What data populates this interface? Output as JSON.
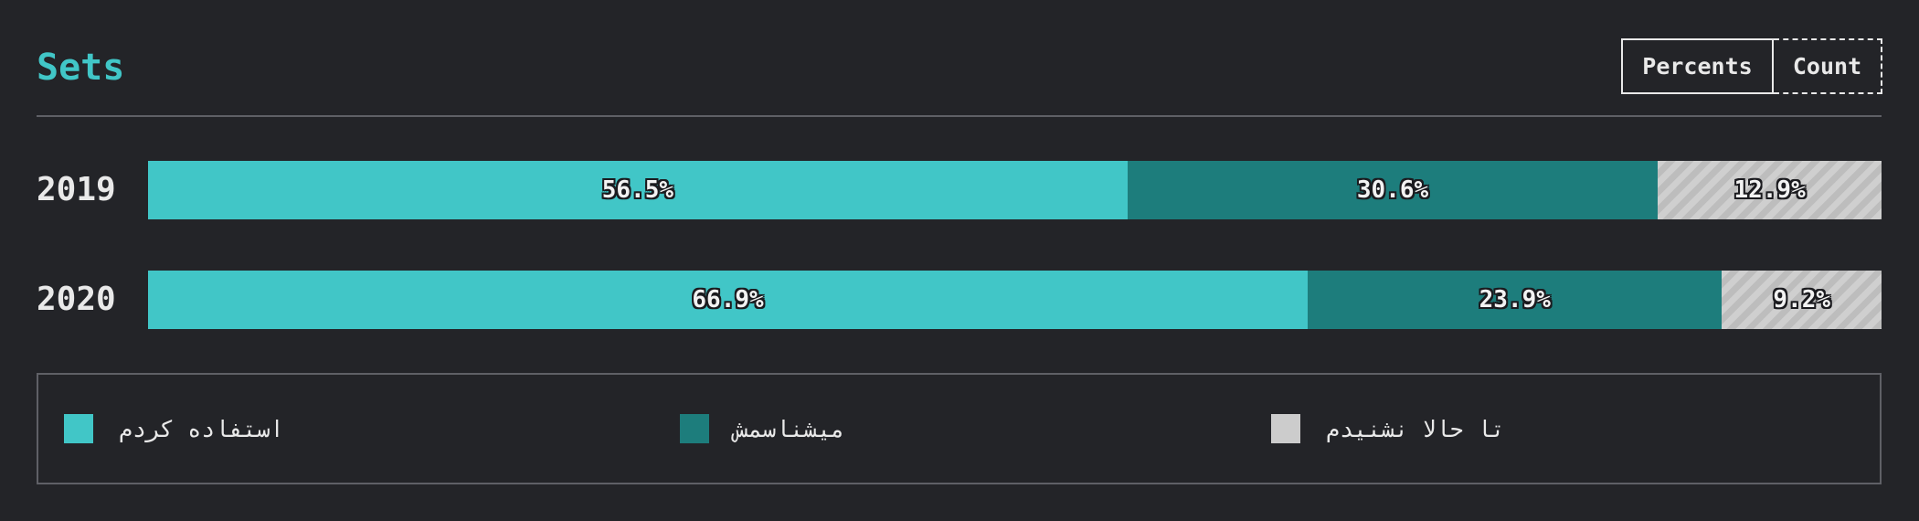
{
  "header": {
    "title": "Sets",
    "toggle": {
      "percents_label": "Percents",
      "count_label": "Count"
    }
  },
  "chart_data": {
    "type": "bar",
    "stacked": true,
    "orientation": "horizontal",
    "normalized": "percent",
    "title": "Sets",
    "categories": [
      "2019",
      "2020"
    ],
    "series": [
      {
        "name": "استفاده کردم",
        "values": [
          56.5,
          66.9
        ],
        "labels": [
          "56.5%",
          "66.9%"
        ],
        "color": "#41c6c7",
        "pattern": "solid"
      },
      {
        "name": "میشناسمش",
        "values": [
          30.6,
          23.9
        ],
        "labels": [
          "30.6%",
          "23.9%"
        ],
        "color": "#1d7d7c",
        "pattern": "solid"
      },
      {
        "name": "تا حالا نشنیدم",
        "values": [
          12.9,
          9.2
        ],
        "labels": [
          "12.9%",
          "9.2%"
        ],
        "color": "#cccccc",
        "pattern": "hatched"
      }
    ],
    "legend_position": "bottom",
    "grid": false
  }
}
